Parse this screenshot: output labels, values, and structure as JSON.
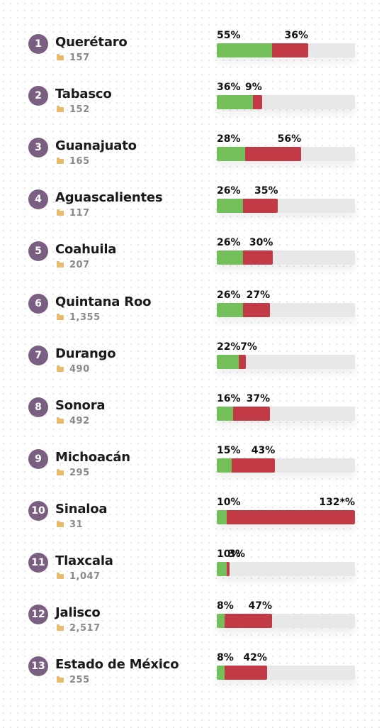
{
  "chart_data": {
    "type": "bar",
    "stacked": true,
    "scale_max_percent": 132,
    "colors": {
      "green": "#73c05a",
      "red": "#c23a46",
      "track": "#e8e8e8",
      "rank": "#7b5f82",
      "folder": "#e8bb6b"
    },
    "icon": "folder-icon",
    "rows": [
      {
        "rank": "1",
        "state": "Querétaro",
        "count": "157",
        "green": 55,
        "red": 36,
        "green_label": "55%",
        "red_label": "36%"
      },
      {
        "rank": "2",
        "state": "Tabasco",
        "count": "152",
        "green": 36,
        "red": 9,
        "green_label": "36%",
        "red_label": "9%"
      },
      {
        "rank": "3",
        "state": "Guanajuato",
        "count": "165",
        "green": 28,
        "red": 56,
        "green_label": "28%",
        "red_label": "56%"
      },
      {
        "rank": "4",
        "state": "Aguascalientes",
        "count": "117",
        "green": 26,
        "red": 35,
        "green_label": "26%",
        "red_label": "35%"
      },
      {
        "rank": "5",
        "state": "Coahuila",
        "count": "207",
        "green": 26,
        "red": 30,
        "green_label": "26%",
        "red_label": "30%"
      },
      {
        "rank": "6",
        "state": "Quintana Roo",
        "count": "1,355",
        "green": 26,
        "red": 27,
        "green_label": "26%",
        "red_label": "27%"
      },
      {
        "rank": "7",
        "state": "Durango",
        "count": "490",
        "green": 22,
        "red": 7,
        "green_label": "22%",
        "red_label": "7%"
      },
      {
        "rank": "8",
        "state": "Sonora",
        "count": "492",
        "green": 16,
        "red": 37,
        "green_label": "16%",
        "red_label": "37%"
      },
      {
        "rank": "9",
        "state": "Michoacán",
        "count": "295",
        "green": 15,
        "red": 43,
        "green_label": "15%",
        "red_label": "43%"
      },
      {
        "rank": "10",
        "state": "Sinaloa",
        "count": "31",
        "green": 10,
        "red": 132,
        "green_label": "10%",
        "red_label": "132*%"
      },
      {
        "rank": "11",
        "state": "Tlaxcala",
        "count": "1,047",
        "green": 10,
        "red": 3,
        "green_label": "10%",
        "red_label": "3%"
      },
      {
        "rank": "12",
        "state": "Jalisco",
        "count": "2,517",
        "green": 8,
        "red": 47,
        "green_label": "8%",
        "red_label": "47%"
      },
      {
        "rank": "13",
        "state": "Estado de México",
        "count": "255",
        "green": 8,
        "red": 42,
        "green_label": "8%",
        "red_label": "42%"
      }
    ]
  }
}
